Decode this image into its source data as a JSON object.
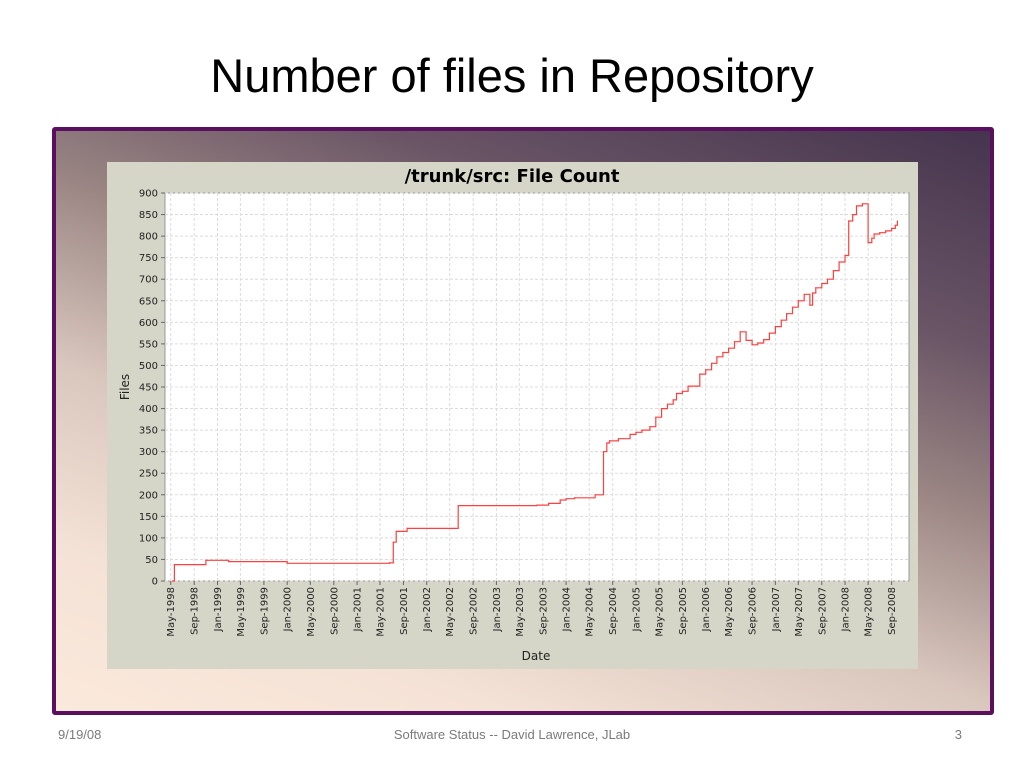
{
  "slide": {
    "title": "Number of files in Repository",
    "footer_date": "9/19/08",
    "footer_center": "Software Status    --    David Lawrence, JLab",
    "page_number": "3"
  },
  "colors": {
    "frame_border": "#5a0f5f",
    "panel_bg": "#d5d5c8",
    "plot_bg": "#ffffff",
    "line": "#ff4040",
    "grid": "#dcdcdc"
  },
  "chart_data": {
    "type": "line",
    "title": "/trunk/src: File Count",
    "xlabel": "Date",
    "ylabel": "Files",
    "ylim": [
      0,
      900
    ],
    "xlim": [
      "1998-04-15",
      "1998-04-15"
    ],
    "x_range": [
      "1998-04-01",
      "2008-12-01"
    ],
    "grid": true,
    "step": true,
    "yticks": [
      0,
      50,
      100,
      150,
      200,
      250,
      300,
      350,
      400,
      450,
      500,
      550,
      600,
      650,
      700,
      750,
      800,
      850,
      900
    ],
    "xticks": [
      "May-1998",
      "Sep-1998",
      "Jan-1999",
      "May-1999",
      "Sep-1999",
      "Jan-2000",
      "May-2000",
      "Sep-2000",
      "Jan-2001",
      "May-2001",
      "Sep-2001",
      "Jan-2002",
      "May-2002",
      "Sep-2002",
      "Jan-2003",
      "May-2003",
      "Sep-2003",
      "Jan-2004",
      "May-2004",
      "Sep-2004",
      "Jan-2005",
      "May-2005",
      "Sep-2005",
      "Jan-2006",
      "May-2006",
      "Sep-2006",
      "Jan-2007",
      "May-2007",
      "Sep-2007",
      "Jan-2008",
      "May-2008",
      "Sep-2008"
    ],
    "series": [
      {
        "x": [
          "1998-05-10",
          "1998-05-20",
          "1998-11-01",
          "1999-03-01",
          "2000-01-01",
          "2001-06-20",
          "2001-07-10",
          "2001-07-25",
          "2001-09-20",
          "2002-06-15",
          "2003-08-01",
          "2003-10-01",
          "2003-12-01",
          "2004-01-01",
          "2004-02-15",
          "2004-06-01",
          "2004-07-15",
          "2004-08-01",
          "2004-08-15",
          "2004-10-01",
          "2004-12-01",
          "2005-01-01",
          "2005-02-01",
          "2005-03-15",
          "2005-04-15",
          "2005-05-15",
          "2005-06-15",
          "2005-07-15",
          "2005-08-01",
          "2005-09-01",
          "2005-10-01",
          "2005-12-01",
          "2006-01-01",
          "2006-02-01",
          "2006-03-01",
          "2006-04-01",
          "2006-05-01",
          "2006-06-01",
          "2006-07-01",
          "2006-08-01",
          "2006-09-01",
          "2006-10-01",
          "2006-11-01",
          "2006-12-01",
          "2007-01-01",
          "2007-02-01",
          "2007-03-01",
          "2007-04-01",
          "2007-05-01",
          "2007-06-01",
          "2007-07-01",
          "2007-07-15",
          "2007-08-01",
          "2007-09-01",
          "2007-10-01",
          "2007-11-01",
          "2007-12-01",
          "2008-01-01",
          "2008-01-20",
          "2008-02-10",
          "2008-03-01",
          "2008-04-01",
          "2008-05-01",
          "2008-05-20",
          "2008-06-01",
          "2008-07-01",
          "2008-08-01",
          "2008-09-01",
          "2008-09-20",
          "2008-10-01"
        ],
        "values": [
          0,
          38,
          48,
          45,
          41,
          42,
          90,
          115,
          122,
          175,
          176,
          180,
          188,
          191,
          193,
          200,
          300,
          320,
          325,
          330,
          340,
          345,
          350,
          358,
          380,
          400,
          410,
          420,
          435,
          440,
          452,
          480,
          490,
          505,
          520,
          530,
          540,
          555,
          578,
          558,
          548,
          552,
          560,
          575,
          590,
          605,
          620,
          635,
          650,
          665,
          640,
          668,
          680,
          690,
          700,
          720,
          740,
          755,
          835,
          850,
          870,
          875,
          785,
          795,
          805,
          808,
          812,
          818,
          825,
          835
        ]
      }
    ]
  }
}
